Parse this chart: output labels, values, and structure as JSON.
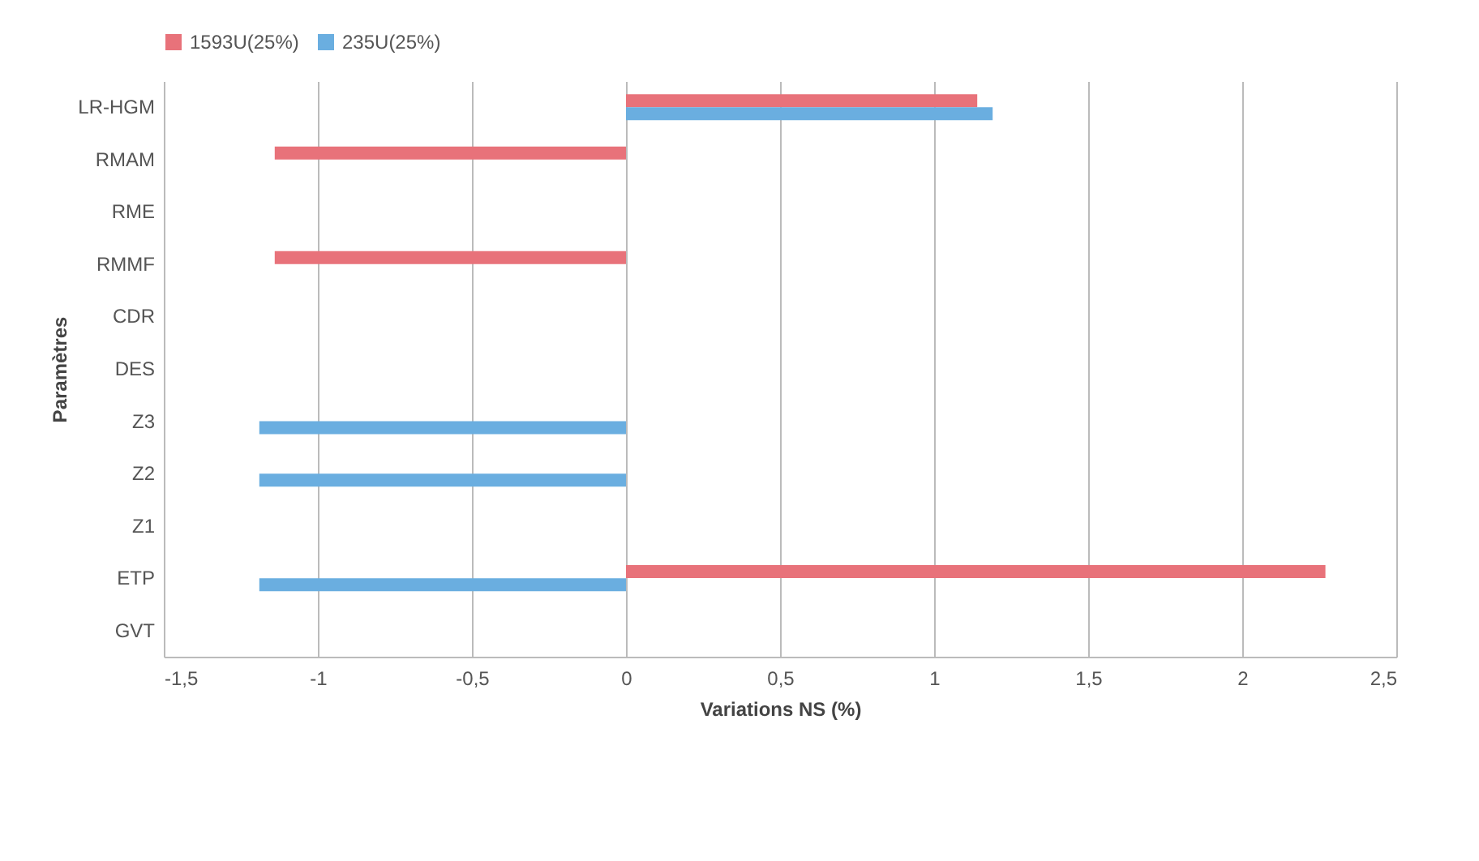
{
  "chart_data": {
    "type": "bar",
    "orientation": "horizontal",
    "xlabel": "Variations NS (%)",
    "ylabel": "Paramètres",
    "categories": [
      "LR-HGM",
      "RMAM",
      "RME",
      "RMMF",
      "CDR",
      "DES",
      "Z3",
      "Z2",
      "Z1",
      "ETP",
      "GVT"
    ],
    "series": [
      {
        "name": "1593U(25%)",
        "color": "#e8727a",
        "values": [
          1.14,
          -1.14,
          null,
          -1.14,
          null,
          null,
          null,
          null,
          null,
          2.27,
          null
        ]
      },
      {
        "name": "235U(25%)",
        "color": "#6aaee0",
        "values": [
          1.19,
          null,
          null,
          null,
          null,
          null,
          -1.19,
          -1.19,
          null,
          -1.19,
          null
        ]
      }
    ],
    "xlim": [
      -1.5,
      2.5
    ],
    "xticks": [
      {
        "value": -1.5,
        "label": "-1,5"
      },
      -1,
      {
        "value": -0.5,
        "label": "-0,5"
      },
      0,
      {
        "value": 0.5,
        "label": "0,5"
      },
      1,
      {
        "value": 1.5,
        "label": "1,5"
      },
      2,
      {
        "value": 2.5,
        "label": "2,5"
      }
    ],
    "grid": "x",
    "legend": "top"
  }
}
